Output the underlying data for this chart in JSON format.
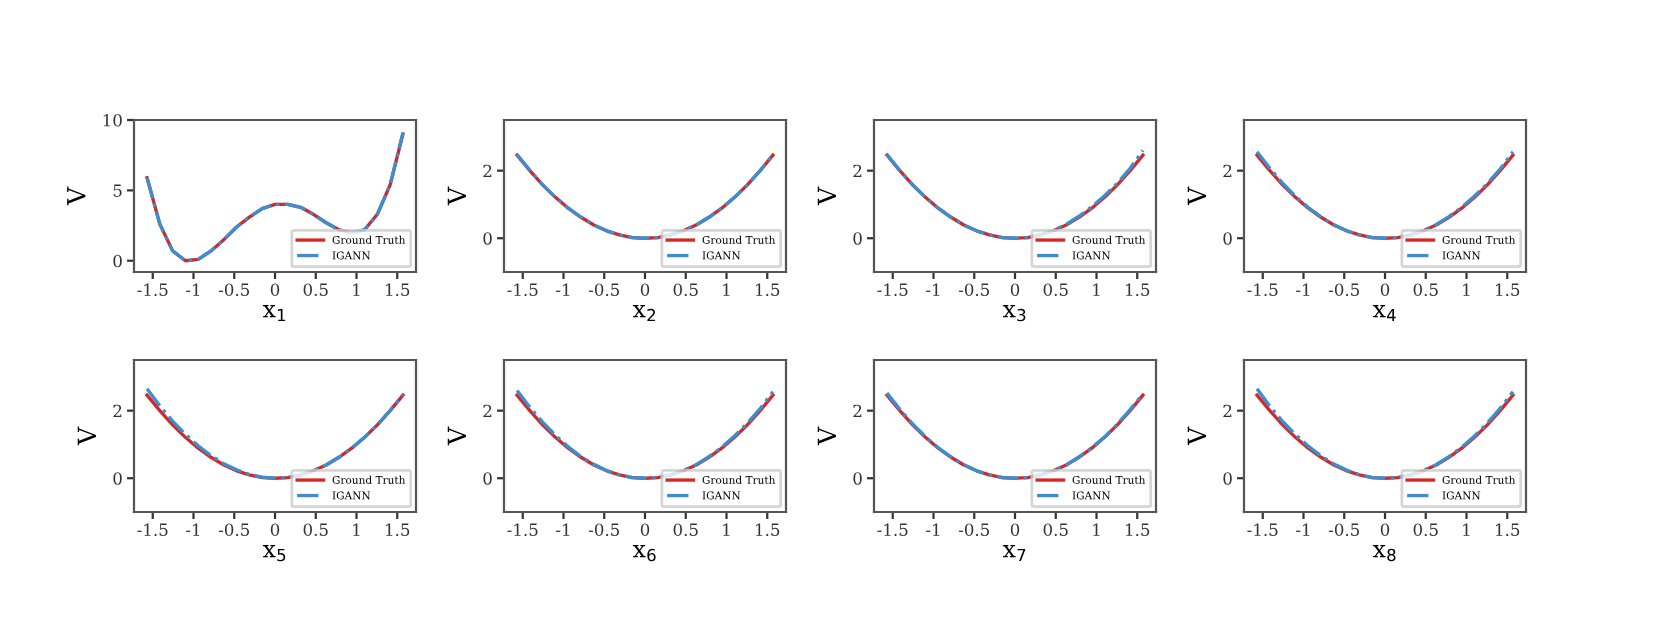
{
  "chart_data": [
    {
      "type": "line",
      "xlabel": "x$_{1}$",
      "ylabel": "V",
      "xlim": [
        -1.73,
        1.73
      ],
      "xticks": [
        -1.5,
        -1,
        -0.5,
        0,
        0.5,
        1,
        1.5
      ],
      "ylim": [
        -0.8,
        10
      ],
      "yticks": [
        0,
        5,
        10
      ],
      "legend": "lower right",
      "grid": false,
      "x": [
        -1.57,
        -1.413,
        -1.256,
        -1.099,
        -0.942,
        -0.785,
        -0.628,
        -0.471,
        -0.314,
        -0.157,
        0,
        0.157,
        0.314,
        0.471,
        0.628,
        0.785,
        0.942,
        1.099,
        1.256,
        1.413,
        1.57
      ],
      "series": [
        {
          "name": "Ground Truth",
          "color": "#d62728",
          "line_style": "solid",
          "values": [
            5.9,
            2.6,
            0.7,
            0.0,
            0.1,
            0.7,
            1.5,
            2.4,
            3.1,
            3.7,
            4.0,
            4.0,
            3.8,
            3.3,
            2.7,
            2.2,
            2.0,
            2.2,
            3.3,
            5.4,
            9.0
          ]
        },
        {
          "name": "IGANN",
          "color": "#3a8fd0",
          "line_style": "dashdot",
          "values": [
            5.9,
            2.6,
            0.7,
            0.0,
            0.1,
            0.7,
            1.5,
            2.4,
            3.1,
            3.7,
            4.0,
            4.0,
            3.8,
            3.3,
            2.7,
            2.2,
            2.0,
            2.2,
            3.3,
            5.4,
            9.1
          ]
        }
      ]
    },
    {
      "type": "line",
      "xlabel": "x$_{2}$",
      "ylabel": "V",
      "xlim": [
        -1.73,
        1.73
      ],
      "xticks": [
        -1.5,
        -1,
        -0.5,
        0,
        0.5,
        1,
        1.5
      ],
      "ylim": [
        -1,
        3.5
      ],
      "yticks": [
        0,
        2
      ],
      "legend": "lower right",
      "grid": false,
      "x": [
        -1.57,
        -1.413,
        -1.256,
        -1.099,
        -0.942,
        -0.785,
        -0.628,
        -0.471,
        -0.314,
        -0.157,
        0,
        0.157,
        0.314,
        0.471,
        0.628,
        0.785,
        0.942,
        1.099,
        1.256,
        1.413,
        1.57
      ],
      "series": [
        {
          "name": "Ground Truth",
          "color": "#d62728",
          "line_style": "solid",
          "values": [
            2.46,
            2.0,
            1.58,
            1.21,
            0.89,
            0.62,
            0.39,
            0.22,
            0.1,
            0.02,
            0,
            0.02,
            0.1,
            0.22,
            0.39,
            0.62,
            0.89,
            1.21,
            1.58,
            2.0,
            2.46
          ]
        },
        {
          "name": "IGANN",
          "color": "#3a8fd0",
          "line_style": "dashdot",
          "values": [
            2.48,
            2.01,
            1.58,
            1.21,
            0.89,
            0.62,
            0.39,
            0.22,
            0.1,
            0.02,
            0,
            0.02,
            0.1,
            0.22,
            0.39,
            0.62,
            0.89,
            1.21,
            1.58,
            2.0,
            2.47
          ]
        }
      ]
    },
    {
      "type": "line",
      "xlabel": "x$_{3}$",
      "ylabel": "V",
      "xlim": [
        -1.73,
        1.73
      ],
      "xticks": [
        -1.5,
        -1,
        -0.5,
        0,
        0.5,
        1,
        1.5
      ],
      "ylim": [
        -1,
        3.5
      ],
      "yticks": [
        0,
        2
      ],
      "legend": "lower right",
      "grid": false,
      "x": [
        -1.57,
        -1.413,
        -1.256,
        -1.099,
        -0.942,
        -0.785,
        -0.628,
        -0.471,
        -0.314,
        -0.157,
        0,
        0.157,
        0.314,
        0.471,
        0.628,
        0.785,
        0.942,
        1.099,
        1.256,
        1.413,
        1.57
      ],
      "series": [
        {
          "name": "Ground Truth",
          "color": "#d62728",
          "line_style": "solid",
          "values": [
            2.46,
            2.0,
            1.58,
            1.21,
            0.89,
            0.62,
            0.39,
            0.22,
            0.1,
            0.02,
            0,
            0.02,
            0.1,
            0.22,
            0.39,
            0.62,
            0.89,
            1.21,
            1.58,
            2.0,
            2.46
          ]
        },
        {
          "name": "IGANN",
          "color": "#3a8fd0",
          "line_style": "dashdot",
          "values": [
            2.48,
            2.0,
            1.58,
            1.21,
            0.89,
            0.62,
            0.39,
            0.22,
            0.1,
            0.02,
            0,
            0.02,
            0.1,
            0.23,
            0.41,
            0.65,
            0.93,
            1.26,
            1.63,
            2.07,
            2.6
          ]
        }
      ]
    },
    {
      "type": "line",
      "xlabel": "x$_{4}$",
      "ylabel": "V",
      "xlim": [
        -1.73,
        1.73
      ],
      "xticks": [
        -1.5,
        -1,
        -0.5,
        0,
        0.5,
        1,
        1.5
      ],
      "ylim": [
        -1,
        3.5
      ],
      "yticks": [
        0,
        2
      ],
      "legend": "lower right",
      "grid": false,
      "x": [
        -1.57,
        -1.413,
        -1.256,
        -1.099,
        -0.942,
        -0.785,
        -0.628,
        -0.471,
        -0.314,
        -0.157,
        0,
        0.157,
        0.314,
        0.471,
        0.628,
        0.785,
        0.942,
        1.099,
        1.256,
        1.413,
        1.57
      ],
      "series": [
        {
          "name": "Ground Truth",
          "color": "#d62728",
          "line_style": "solid",
          "values": [
            2.46,
            2.0,
            1.58,
            1.21,
            0.89,
            0.62,
            0.39,
            0.22,
            0.1,
            0.02,
            0,
            0.02,
            0.1,
            0.22,
            0.39,
            0.62,
            0.89,
            1.21,
            1.58,
            2.0,
            2.46
          ]
        },
        {
          "name": "IGANN",
          "color": "#3a8fd0",
          "line_style": "dashdot",
          "values": [
            2.56,
            2.07,
            1.63,
            1.24,
            0.91,
            0.63,
            0.4,
            0.22,
            0.1,
            0.02,
            0,
            0.02,
            0.1,
            0.23,
            0.4,
            0.64,
            0.92,
            1.25,
            1.62,
            2.05,
            2.56
          ]
        }
      ]
    },
    {
      "type": "line",
      "xlabel": "x$_{5}$",
      "ylabel": "V",
      "xlim": [
        -1.73,
        1.73
      ],
      "xticks": [
        -1.5,
        -1,
        -0.5,
        0,
        0.5,
        1,
        1.5
      ],
      "ylim": [
        -1,
        3.5
      ],
      "yticks": [
        0,
        2
      ],
      "legend": "lower right",
      "grid": false,
      "x": [
        -1.57,
        -1.413,
        -1.256,
        -1.099,
        -0.942,
        -0.785,
        -0.628,
        -0.471,
        -0.314,
        -0.157,
        0,
        0.157,
        0.314,
        0.471,
        0.628,
        0.785,
        0.942,
        1.099,
        1.256,
        1.413,
        1.57
      ],
      "series": [
        {
          "name": "Ground Truth",
          "color": "#d62728",
          "line_style": "solid",
          "values": [
            2.46,
            2.0,
            1.58,
            1.21,
            0.89,
            0.62,
            0.39,
            0.22,
            0.1,
            0.02,
            0,
            0.02,
            0.1,
            0.22,
            0.39,
            0.62,
            0.89,
            1.21,
            1.58,
            2.0,
            2.46
          ]
        },
        {
          "name": "IGANN",
          "color": "#3a8fd0",
          "line_style": "dashdot",
          "values": [
            2.65,
            2.14,
            1.69,
            1.3,
            0.96,
            0.67,
            0.43,
            0.25,
            0.11,
            0.03,
            0,
            0.02,
            0.1,
            0.22,
            0.39,
            0.62,
            0.89,
            1.21,
            1.58,
            2.0,
            2.47
          ]
        }
      ]
    },
    {
      "type": "line",
      "xlabel": "x$_{6}$",
      "ylabel": "V",
      "xlim": [
        -1.73,
        1.73
      ],
      "xticks": [
        -1.5,
        -1,
        -0.5,
        0,
        0.5,
        1,
        1.5
      ],
      "ylim": [
        -1,
        3.5
      ],
      "yticks": [
        0,
        2
      ],
      "legend": "lower right",
      "grid": false,
      "x": [
        -1.57,
        -1.413,
        -1.256,
        -1.099,
        -0.942,
        -0.785,
        -0.628,
        -0.471,
        -0.314,
        -0.157,
        0,
        0.157,
        0.314,
        0.471,
        0.628,
        0.785,
        0.942,
        1.099,
        1.256,
        1.413,
        1.57
      ],
      "series": [
        {
          "name": "Ground Truth",
          "color": "#d62728",
          "line_style": "solid",
          "values": [
            2.46,
            2.0,
            1.58,
            1.21,
            0.89,
            0.62,
            0.39,
            0.22,
            0.1,
            0.02,
            0,
            0.02,
            0.1,
            0.22,
            0.39,
            0.62,
            0.89,
            1.21,
            1.58,
            2.0,
            2.46
          ]
        },
        {
          "name": "IGANN",
          "color": "#3a8fd0",
          "line_style": "dashdot",
          "values": [
            2.6,
            2.1,
            1.66,
            1.27,
            0.93,
            0.64,
            0.41,
            0.23,
            0.1,
            0.02,
            0,
            0.02,
            0.1,
            0.23,
            0.4,
            0.64,
            0.92,
            1.25,
            1.63,
            2.06,
            2.56
          ]
        }
      ]
    },
    {
      "type": "line",
      "xlabel": "x$_{7}$",
      "ylabel": "V",
      "xlim": [
        -1.73,
        1.73
      ],
      "xticks": [
        -1.5,
        -1,
        -0.5,
        0,
        0.5,
        1,
        1.5
      ],
      "ylim": [
        -1,
        3.5
      ],
      "yticks": [
        0,
        2
      ],
      "legend": "lower right",
      "grid": false,
      "x": [
        -1.57,
        -1.413,
        -1.256,
        -1.099,
        -0.942,
        -0.785,
        -0.628,
        -0.471,
        -0.314,
        -0.157,
        0,
        0.157,
        0.314,
        0.471,
        0.628,
        0.785,
        0.942,
        1.099,
        1.256,
        1.413,
        1.57
      ],
      "series": [
        {
          "name": "Ground Truth",
          "color": "#d62728",
          "line_style": "solid",
          "values": [
            2.46,
            2.0,
            1.58,
            1.21,
            0.89,
            0.62,
            0.39,
            0.22,
            0.1,
            0.02,
            0,
            0.02,
            0.1,
            0.22,
            0.39,
            0.62,
            0.89,
            1.21,
            1.58,
            2.0,
            2.46
          ]
        },
        {
          "name": "IGANN",
          "color": "#3a8fd0",
          "line_style": "dashdot",
          "values": [
            2.52,
            2.04,
            1.61,
            1.23,
            0.9,
            0.63,
            0.4,
            0.22,
            0.1,
            0.02,
            0,
            0.02,
            0.1,
            0.22,
            0.39,
            0.63,
            0.9,
            1.22,
            1.6,
            2.03,
            2.5
          ]
        }
      ]
    },
    {
      "type": "line",
      "xlabel": "x$_{8}$",
      "ylabel": "V",
      "xlim": [
        -1.73,
        1.73
      ],
      "xticks": [
        -1.5,
        -1,
        -0.5,
        0,
        0.5,
        1,
        1.5
      ],
      "ylim": [
        -1,
        3.5
      ],
      "yticks": [
        0,
        2
      ],
      "legend": "lower right",
      "grid": false,
      "x": [
        -1.57,
        -1.413,
        -1.256,
        -1.099,
        -0.942,
        -0.785,
        -0.628,
        -0.471,
        -0.314,
        -0.157,
        0,
        0.157,
        0.314,
        0.471,
        0.628,
        0.785,
        0.942,
        1.099,
        1.256,
        1.413,
        1.57
      ],
      "series": [
        {
          "name": "Ground Truth",
          "color": "#d62728",
          "line_style": "solid",
          "values": [
            2.46,
            2.0,
            1.58,
            1.21,
            0.89,
            0.62,
            0.39,
            0.22,
            0.1,
            0.02,
            0,
            0.02,
            0.1,
            0.22,
            0.39,
            0.62,
            0.89,
            1.21,
            1.58,
            2.0,
            2.46
          ]
        },
        {
          "name": "IGANN",
          "color": "#3a8fd0",
          "line_style": "dashdot",
          "values": [
            2.65,
            2.13,
            1.68,
            1.29,
            0.95,
            0.66,
            0.42,
            0.24,
            0.1,
            0.02,
            0,
            0.02,
            0.1,
            0.23,
            0.4,
            0.64,
            0.92,
            1.25,
            1.63,
            2.07,
            2.56
          ]
        }
      ]
    }
  ]
}
